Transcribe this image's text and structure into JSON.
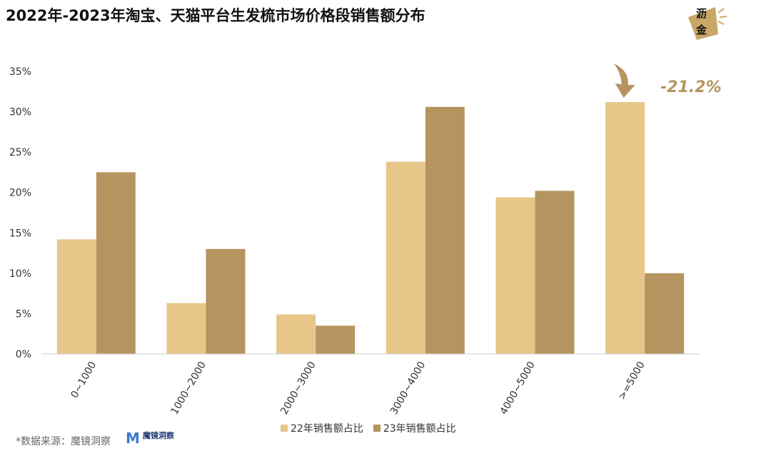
{
  "title": "2022年-2023年淘宝、天猫平台生发梳市场价格段销售额分布",
  "brand_logo_text": "沥金",
  "source_text": "*数据来源：魔镜洞察",
  "source_logo": {
    "mark": "M",
    "name": "魔镜洞察"
  },
  "colors": {
    "series_22": "#E8C68A",
    "series_23": "#B59460",
    "annotation": "#B59460",
    "axis": "#cfcfcf"
  },
  "chart_data": {
    "type": "bar",
    "categories": [
      "0~1000",
      "1000~2000",
      "2000~3000",
      "3000~4000",
      "4000~5000",
      ">=5000"
    ],
    "series": [
      {
        "name": "22年销售额占比",
        "values": [
          14.2,
          6.3,
          4.9,
          23.8,
          19.4,
          31.2
        ]
      },
      {
        "name": "23年销售额占比",
        "values": [
          22.5,
          13.0,
          3.5,
          30.6,
          20.2,
          10.0
        ]
      }
    ],
    "yticks": [
      "0%",
      "5%",
      "10%",
      "15%",
      "20%",
      "25%",
      "30%",
      "35%"
    ],
    "ylim": [
      0,
      35
    ],
    "annotation": {
      "category": ">=5000",
      "text": "-21.2%"
    },
    "grid": false,
    "legend_position": "bottom"
  }
}
